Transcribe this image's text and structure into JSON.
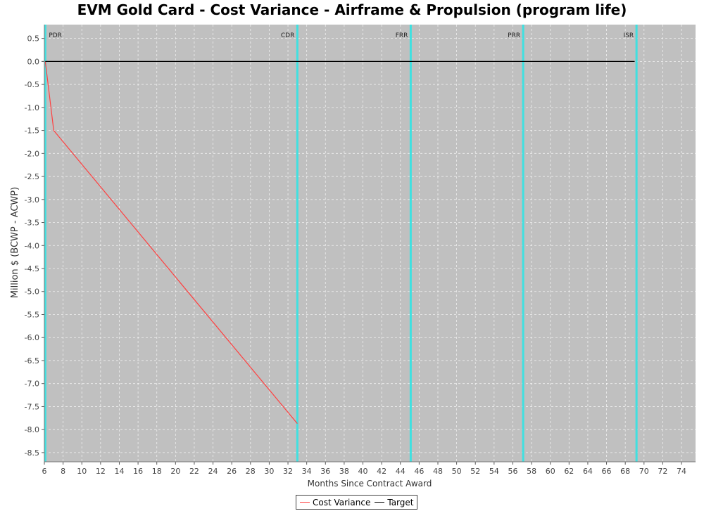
{
  "chart_data": {
    "type": "line",
    "title": "EVM Gold Card - Cost Variance - Airframe & Propulsion (program life)",
    "xlabel": "Months Since Contract Award",
    "ylabel": "Million $ (BCWP - ACWP)",
    "xlim": [
      6,
      75.5
    ],
    "ylim": [
      -8.7,
      0.8
    ],
    "xticks": [
      6,
      8,
      10,
      12,
      14,
      16,
      18,
      20,
      22,
      24,
      26,
      28,
      30,
      32,
      34,
      36,
      38,
      40,
      42,
      44,
      46,
      48,
      50,
      52,
      54,
      56,
      58,
      60,
      62,
      64,
      66,
      68,
      70,
      72,
      74
    ],
    "yticks": [
      0.5,
      0.0,
      -0.5,
      -1.0,
      -1.5,
      -2.0,
      -2.5,
      -3.0,
      -3.5,
      -4.0,
      -4.5,
      -5.0,
      -5.5,
      -6.0,
      -6.5,
      -7.0,
      -7.5,
      -8.0,
      -8.5
    ],
    "grid": true,
    "plot_background": "#c0c0c0",
    "series": [
      {
        "name": "Cost Variance",
        "color": "#ff4040",
        "x": [
          6.1,
          7,
          33
        ],
        "y": [
          0,
          -1.5,
          -7.87
        ]
      },
      {
        "name": "Target",
        "color": "#000000",
        "x": [
          6.1,
          69
        ],
        "y": [
          0,
          0
        ]
      }
    ],
    "milestones": [
      {
        "label": "PDR",
        "x": 6.1
      },
      {
        "label": "CDR",
        "x": 33
      },
      {
        "label": "FRR",
        "x": 45.1
      },
      {
        "label": "PRR",
        "x": 57.1
      },
      {
        "label": "ISR",
        "x": 69.2
      }
    ],
    "milestone_color": "#40e0e0",
    "legend_position": "bottom-center"
  }
}
